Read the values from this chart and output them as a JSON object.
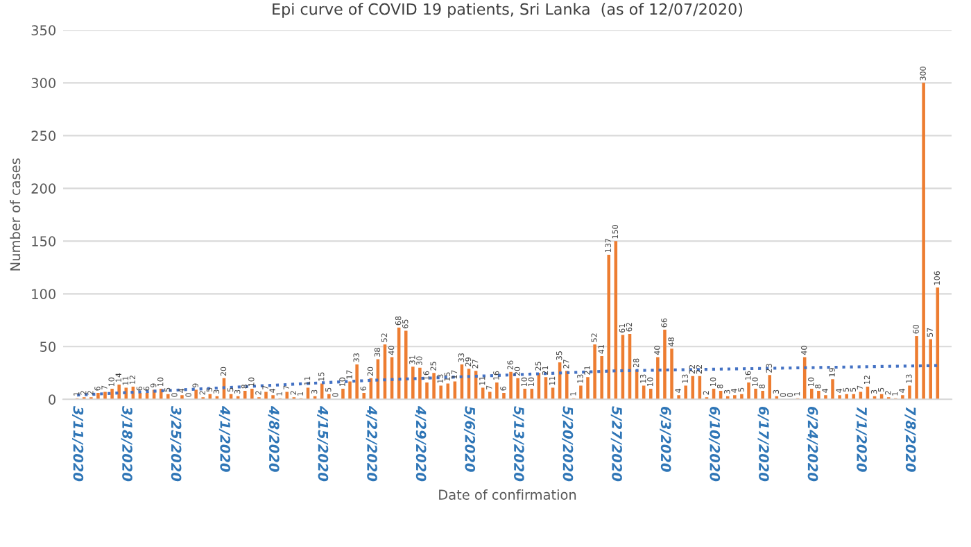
{
  "chart_data": {
    "type": "bar",
    "title": "Epi curve of COVID 19 patients, Sri Lanka  (as of 12/07/2020)",
    "xlabel": "Date of confirmation",
    "ylabel": "Number of cases",
    "x": [
      "2020-03-11",
      "2020-03-12",
      "2020-03-13",
      "2020-03-14",
      "2020-03-15",
      "2020-03-16",
      "2020-03-17",
      "2020-03-18",
      "2020-03-19",
      "2020-03-20",
      "2020-03-21",
      "2020-03-22",
      "2020-03-23",
      "2020-03-24",
      "2020-03-25",
      "2020-03-26",
      "2020-03-27",
      "2020-03-28",
      "2020-03-29",
      "2020-03-30",
      "2020-03-31",
      "2020-04-01",
      "2020-04-02",
      "2020-04-03",
      "2020-04-04",
      "2020-04-05",
      "2020-04-06",
      "2020-04-07",
      "2020-04-08",
      "2020-04-09",
      "2020-04-10",
      "2020-04-11",
      "2020-04-12",
      "2020-04-13",
      "2020-04-14",
      "2020-04-15",
      "2020-04-16",
      "2020-04-17",
      "2020-04-18",
      "2020-04-19",
      "2020-04-20",
      "2020-04-21",
      "2020-04-22",
      "2020-04-23",
      "2020-04-24",
      "2020-04-25",
      "2020-04-26",
      "2020-04-27",
      "2020-04-28",
      "2020-04-29",
      "2020-04-30",
      "2020-05-01",
      "2020-05-02",
      "2020-05-03",
      "2020-05-04",
      "2020-05-05",
      "2020-05-06",
      "2020-05-07",
      "2020-05-08",
      "2020-05-09",
      "2020-05-10",
      "2020-05-11",
      "2020-05-12",
      "2020-05-13",
      "2020-05-14",
      "2020-05-15",
      "2020-05-16",
      "2020-05-17",
      "2020-05-18",
      "2020-05-19",
      "2020-05-20",
      "2020-05-21",
      "2020-05-22",
      "2020-05-23",
      "2020-05-24",
      "2020-05-25",
      "2020-05-26",
      "2020-05-27",
      "2020-05-28",
      "2020-05-29",
      "2020-05-30",
      "2020-05-31",
      "2020-06-01",
      "2020-06-02",
      "2020-06-03",
      "2020-06-04",
      "2020-06-05",
      "2020-06-06",
      "2020-06-07",
      "2020-06-08",
      "2020-06-09",
      "2020-06-10",
      "2020-06-11",
      "2020-06-12",
      "2020-06-13",
      "2020-06-14",
      "2020-06-15",
      "2020-06-16",
      "2020-06-17",
      "2020-06-18",
      "2020-06-19",
      "2020-06-20",
      "2020-06-21",
      "2020-06-22",
      "2020-06-23",
      "2020-06-24",
      "2020-06-25",
      "2020-06-26",
      "2020-06-27",
      "2020-06-28",
      "2020-06-29",
      "2020-06-30",
      "2020-07-01",
      "2020-07-02",
      "2020-07-03",
      "2020-07-04",
      "2020-07-05",
      "2020-07-06",
      "2020-07-07",
      "2020-07-08",
      "2020-07-09",
      "2020-07-10",
      "2020-07-11",
      "2020-07-12"
    ],
    "series": [
      {
        "color": "#ed7d31",
        "values": [
          1,
          2,
          2,
          6,
          7,
          10,
          14,
          11,
          12,
          6,
          6,
          9,
          10,
          5,
          0,
          4,
          0,
          9,
          2,
          5,
          3,
          20,
          5,
          3,
          8,
          10,
          2,
          7,
          4,
          1,
          7,
          2,
          1,
          11,
          3,
          15,
          5,
          0,
          10,
          17,
          33,
          6,
          20,
          38,
          52,
          40,
          68,
          65,
          31,
          30,
          16,
          25,
          13,
          15,
          17,
          33,
          29,
          27,
          11,
          7,
          16,
          6,
          26,
          20,
          10,
          10,
          25,
          21,
          11,
          35,
          27,
          1,
          13,
          21,
          52,
          41,
          137,
          150,
          61,
          62,
          28,
          13,
          10,
          40,
          66,
          48,
          4,
          13,
          22,
          22,
          2,
          10,
          8,
          3,
          4,
          5,
          16,
          10,
          8,
          23,
          3,
          0,
          0,
          1,
          40,
          10,
          8,
          4,
          19,
          4,
          5,
          5,
          7,
          12,
          3,
          5,
          2,
          1,
          4,
          13,
          60,
          300,
          57,
          106
        ],
        "value_labels": [
          "1",
          "2",
          "2",
          "6",
          "7",
          "10",
          "14",
          "11",
          "12",
          "6",
          "6",
          "9",
          "10",
          "5",
          "0",
          "4",
          "0",
          "9",
          "2",
          "5",
          "3",
          "20",
          "5",
          "3",
          "8",
          "10",
          "2",
          "7",
          "4",
          "1",
          "7",
          "2",
          "1",
          "11",
          "3",
          "15",
          "5",
          "0",
          "10",
          "17",
          "33",
          "6",
          "20",
          "38",
          "52",
          "40",
          "68",
          "65",
          "31",
          "30",
          "16",
          "25",
          "13",
          "15",
          "17",
          "33",
          "29",
          "27",
          "11",
          "7",
          "16",
          "6",
          "26",
          "20",
          "10",
          "10",
          "25",
          "21",
          "11",
          "35",
          "27",
          "1",
          "13",
          "21",
          "52",
          "41",
          "137",
          "150",
          "61",
          "62",
          "28",
          "13",
          "10",
          "40",
          "66",
          "48",
          "4",
          "13",
          "22",
          "22",
          "2",
          "10",
          "8",
          "3",
          "4",
          "5",
          "16",
          "10",
          "8",
          "23",
          "3",
          "0",
          "0",
          "1",
          "40",
          "10",
          "8",
          "4",
          "19",
          "4",
          "5",
          "5",
          "7",
          "12",
          "3",
          "5",
          "2",
          "1",
          "4",
          "13",
          "60",
          "300",
          "57",
          "106"
        ]
      },
      {
        "type": "line",
        "color": "#4472c4",
        "line_style": "dotted",
        "x": [
          "2020-03-11",
          "2020-04-22",
          "2020-05-27",
          "2020-07-12"
        ],
        "values": [
          4,
          18,
          27,
          32
        ]
      }
    ],
    "xlim": [
      "2020-03-09",
      "2020-07-14"
    ],
    "xticks": [
      {
        "value": "2020-03-11",
        "label": "3/11/2020"
      },
      {
        "value": "2020-03-18",
        "label": "3/18/2020"
      },
      {
        "value": "2020-03-25",
        "label": "3/25/2020"
      },
      {
        "value": "2020-04-01",
        "label": "4/1/2020"
      },
      {
        "value": "2020-04-08",
        "label": "4/8/2020"
      },
      {
        "value": "2020-04-15",
        "label": "4/15/2020"
      },
      {
        "value": "2020-04-22",
        "label": "4/22/2020"
      },
      {
        "value": "2020-04-29",
        "label": "4/29/2020"
      },
      {
        "value": "2020-05-06",
        "label": "5/6/2020"
      },
      {
        "value": "2020-05-13",
        "label": "5/13/2020"
      },
      {
        "value": "2020-05-20",
        "label": "5/20/2020"
      },
      {
        "value": "2020-05-27",
        "label": "5/27/2020"
      },
      {
        "value": "2020-06-03",
        "label": "6/3/2020"
      },
      {
        "value": "2020-06-10",
        "label": "6/10/2020"
      },
      {
        "value": "2020-06-17",
        "label": "6/17/2020"
      },
      {
        "value": "2020-06-24",
        "label": "6/24/2020"
      },
      {
        "value": "2020-07-01",
        "label": "7/1/2020"
      },
      {
        "value": "2020-07-08",
        "label": "7/8/2020"
      }
    ],
    "ylim": [
      0,
      350
    ],
    "yticks": [
      0,
      50,
      100,
      150,
      200,
      250,
      300,
      350
    ],
    "grid": "y"
  }
}
